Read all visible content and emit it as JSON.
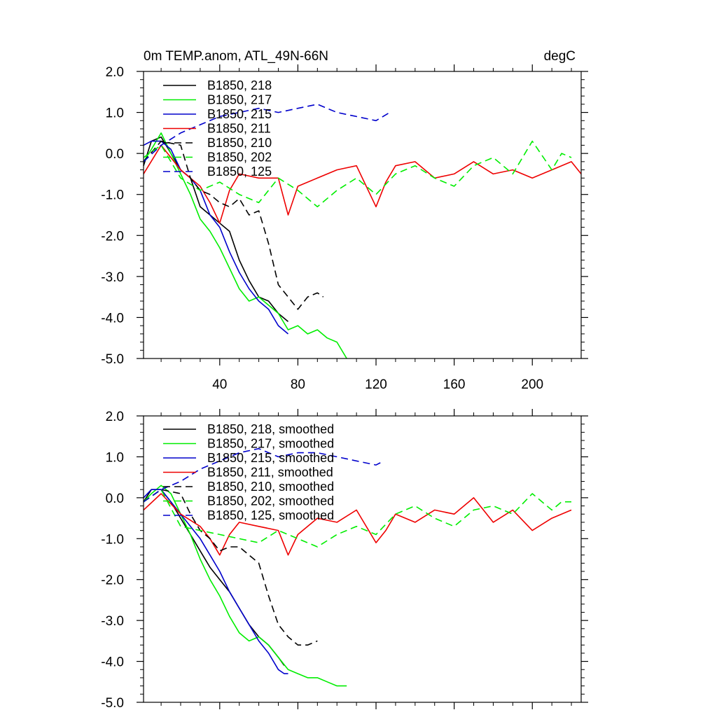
{
  "title_left": "0m TEMP.anom, ATL_49N-66N",
  "title_right": "degC",
  "chart_data": [
    {
      "type": "line",
      "panel": "top",
      "xlim": [
        1,
        225
      ],
      "ylim": [
        -5.0,
        2.0
      ],
      "xticks": [
        40,
        80,
        120,
        160,
        200
      ],
      "xtick_labels": [
        "40",
        "80",
        "120",
        "160",
        "200"
      ],
      "yticks": [
        2.0,
        1.0,
        0.0,
        -1.0,
        -2.0,
        -3.0,
        -4.0,
        -5.0
      ],
      "ytick_labels": [
        "2.0",
        "1.0",
        "0.0",
        "-1.0",
        "-2.0",
        "-3.0",
        "-4.0",
        "-5.0"
      ],
      "legend_position": "top-left",
      "series": [
        {
          "name": "B1850, 218",
          "color": "#000000",
          "dash": "solid",
          "x": [
            1,
            5,
            10,
            15,
            20,
            25,
            30,
            35,
            40,
            45,
            50,
            55,
            60,
            65,
            70,
            75
          ],
          "y": [
            -0.3,
            0.3,
            0.4,
            0.0,
            -0.4,
            -0.6,
            -1.3,
            -1.5,
            -1.7,
            -1.9,
            -2.6,
            -3.1,
            -3.5,
            -3.6,
            -3.9,
            -4.1
          ]
        },
        {
          "name": "B1850, 217",
          "color": "#00ee00",
          "dash": "solid",
          "x": [
            1,
            5,
            10,
            15,
            20,
            25,
            30,
            35,
            40,
            45,
            50,
            55,
            60,
            65,
            70,
            75,
            80,
            85,
            90,
            95,
            100,
            105
          ],
          "y": [
            -0.2,
            0.1,
            0.5,
            0.0,
            -0.5,
            -1.0,
            -1.6,
            -1.9,
            -2.3,
            -2.8,
            -3.3,
            -3.6,
            -3.5,
            -3.7,
            -3.9,
            -4.3,
            -4.2,
            -4.4,
            -4.3,
            -4.5,
            -4.6,
            -5.0
          ]
        },
        {
          "name": "B1850, 215",
          "color": "#0000cc",
          "dash": "solid",
          "x": [
            1,
            5,
            10,
            15,
            20,
            25,
            30,
            35,
            40,
            45,
            50,
            55,
            60,
            65,
            70,
            75
          ],
          "y": [
            0.2,
            0.3,
            0.3,
            0.1,
            -0.4,
            -0.6,
            -0.9,
            -1.5,
            -1.8,
            -2.4,
            -2.9,
            -3.3,
            -3.6,
            -3.8,
            -4.2,
            -4.4
          ]
        },
        {
          "name": "B1850, 211",
          "color": "#ee0000",
          "dash": "solid",
          "x": [
            1,
            10,
            20,
            30,
            35,
            40,
            45,
            50,
            60,
            70,
            75,
            80,
            90,
            100,
            110,
            120,
            125,
            130,
            140,
            150,
            160,
            170,
            180,
            190,
            200,
            210,
            220,
            225
          ],
          "y": [
            -0.5,
            0.2,
            -0.4,
            -0.8,
            -1.2,
            -1.7,
            -0.9,
            -0.5,
            -0.6,
            -0.6,
            -1.5,
            -0.8,
            -0.6,
            -0.4,
            -0.3,
            -1.3,
            -0.7,
            -0.3,
            -0.2,
            -0.6,
            -0.5,
            -0.2,
            -0.5,
            -0.4,
            -0.6,
            -0.4,
            -0.2,
            -0.5
          ]
        },
        {
          "name": "B1850, 210",
          "color": "#000000",
          "dash": "dashed",
          "x": [
            1,
            10,
            20,
            25,
            30,
            35,
            40,
            45,
            50,
            55,
            60,
            65,
            70,
            75,
            80,
            85,
            90,
            93
          ],
          "y": [
            -0.2,
            0.3,
            0.2,
            -0.6,
            -0.9,
            -1.0,
            -1.2,
            -1.3,
            -1.1,
            -1.5,
            -1.4,
            -2.2,
            -3.2,
            -3.5,
            -3.8,
            -3.5,
            -3.4,
            -3.5
          ]
        },
        {
          "name": "B1850, 202",
          "color": "#00ee00",
          "dash": "dashed",
          "x": [
            1,
            10,
            20,
            30,
            40,
            50,
            60,
            70,
            80,
            90,
            100,
            110,
            120,
            130,
            140,
            150,
            160,
            170,
            180,
            190,
            200,
            210,
            215,
            220
          ],
          "y": [
            -0.1,
            0.2,
            -0.6,
            -0.9,
            -0.7,
            -1.0,
            -1.2,
            -0.6,
            -0.9,
            -1.3,
            -0.9,
            -0.6,
            -1.0,
            -0.5,
            -0.3,
            -0.6,
            -0.8,
            -0.3,
            -0.1,
            -0.5,
            0.3,
            -0.4,
            0.0,
            -0.1
          ]
        },
        {
          "name": "B1850, 125",
          "color": "#0000cc",
          "dash": "dashed",
          "x": [
            1,
            10,
            20,
            30,
            40,
            50,
            60,
            70,
            80,
            90,
            100,
            110,
            120,
            127
          ],
          "y": [
            -0.2,
            0.2,
            0.5,
            0.7,
            0.9,
            1.0,
            1.1,
            1.0,
            1.1,
            1.2,
            1.0,
            0.9,
            0.8,
            1.0
          ]
        }
      ]
    },
    {
      "type": "line",
      "panel": "bottom",
      "xlim": [
        1,
        225
      ],
      "ylim": [
        -5.0,
        2.0
      ],
      "xticks": [
        40,
        80,
        120,
        160,
        200
      ],
      "xtick_labels": [],
      "yticks": [
        2.0,
        1.0,
        0.0,
        -1.0,
        -2.0,
        -3.0,
        -4.0,
        -5.0
      ],
      "ytick_labels": [
        "2.0",
        "1.0",
        "0.0",
        "-1.0",
        "-2.0",
        "-3.0",
        "-4.0",
        "-5.0"
      ],
      "legend_position": "top-left",
      "series": [
        {
          "name": "B1850, 218, smoothed",
          "color": "#000000",
          "dash": "solid",
          "x": [
            1,
            5,
            10,
            15,
            20,
            25,
            30,
            35,
            40,
            45,
            50,
            55,
            60,
            65,
            70,
            73
          ],
          "y": [
            -0.1,
            0.2,
            0.2,
            -0.1,
            -0.5,
            -0.9,
            -1.3,
            -1.7,
            -2.0,
            -2.3,
            -2.7,
            -3.1,
            -3.4,
            -3.6,
            -3.9,
            -4.1
          ]
        },
        {
          "name": "B1850, 217, smoothed",
          "color": "#00ee00",
          "dash": "solid",
          "x": [
            1,
            5,
            10,
            15,
            20,
            25,
            30,
            35,
            40,
            45,
            50,
            55,
            60,
            65,
            70,
            75,
            80,
            85,
            90,
            95,
            100,
            105
          ],
          "y": [
            -0.1,
            0.1,
            0.3,
            0.1,
            -0.4,
            -0.9,
            -1.5,
            -2.0,
            -2.4,
            -2.9,
            -3.3,
            -3.5,
            -3.4,
            -3.6,
            -3.9,
            -4.2,
            -4.3,
            -4.4,
            -4.4,
            -4.5,
            -4.6,
            -4.6
          ]
        },
        {
          "name": "B1850, 215, smoothed",
          "color": "#0000cc",
          "dash": "solid",
          "x": [
            1,
            5,
            10,
            15,
            20,
            25,
            30,
            35,
            40,
            45,
            50,
            55,
            60,
            65,
            70,
            73,
            75
          ],
          "y": [
            0.0,
            0.2,
            0.2,
            -0.1,
            -0.4,
            -0.7,
            -1.0,
            -1.4,
            -1.8,
            -2.3,
            -2.7,
            -3.1,
            -3.5,
            -3.8,
            -4.2,
            -4.3,
            -4.3
          ]
        },
        {
          "name": "B1850, 211, smoothed",
          "color": "#ee0000",
          "dash": "solid",
          "x": [
            1,
            10,
            20,
            30,
            35,
            40,
            45,
            50,
            60,
            70,
            75,
            80,
            90,
            100,
            110,
            120,
            125,
            130,
            140,
            150,
            160,
            170,
            180,
            190,
            200,
            210,
            220
          ],
          "y": [
            -0.3,
            0.1,
            -0.4,
            -0.7,
            -1.0,
            -1.4,
            -0.9,
            -0.6,
            -0.7,
            -0.8,
            -1.4,
            -0.9,
            -0.5,
            -0.6,
            -0.3,
            -1.1,
            -0.8,
            -0.4,
            -0.6,
            -0.3,
            -0.4,
            0.0,
            -0.6,
            -0.3,
            -0.8,
            -0.5,
            -0.3
          ]
        },
        {
          "name": "B1850, 210, smoothed",
          "color": "#000000",
          "dash": "dashed",
          "x": [
            1,
            10,
            20,
            25,
            30,
            35,
            40,
            45,
            50,
            55,
            60,
            65,
            70,
            75,
            80,
            85,
            90
          ],
          "y": [
            -0.1,
            0.2,
            0.1,
            -0.4,
            -0.8,
            -1.0,
            -1.3,
            -1.2,
            -1.2,
            -1.4,
            -1.6,
            -2.4,
            -3.1,
            -3.4,
            -3.6,
            -3.6,
            -3.5
          ]
        },
        {
          "name": "B1850, 202, smoothed",
          "color": "#00ee00",
          "dash": "dashed",
          "x": [
            1,
            10,
            20,
            30,
            40,
            50,
            60,
            70,
            80,
            90,
            100,
            110,
            120,
            130,
            140,
            150,
            160,
            170,
            180,
            190,
            200,
            210,
            215,
            220
          ],
          "y": [
            -0.1,
            0.2,
            -0.7,
            -0.8,
            -0.9,
            -1.0,
            -1.1,
            -0.8,
            -1.0,
            -1.2,
            -0.9,
            -0.7,
            -0.9,
            -0.4,
            -0.2,
            -0.5,
            -0.7,
            -0.3,
            -0.2,
            -0.4,
            0.1,
            -0.3,
            -0.1,
            -0.1
          ]
        },
        {
          "name": "B1850, 125, smoothed",
          "color": "#0000cc",
          "dash": "dashed",
          "x": [
            1,
            10,
            20,
            30,
            40,
            50,
            60,
            70,
            80,
            90,
            100,
            110,
            120,
            124
          ],
          "y": [
            -0.1,
            0.2,
            0.4,
            0.7,
            0.9,
            1.1,
            1.2,
            1.0,
            1.1,
            1.1,
            1.0,
            0.9,
            0.8,
            0.9
          ]
        }
      ]
    }
  ]
}
